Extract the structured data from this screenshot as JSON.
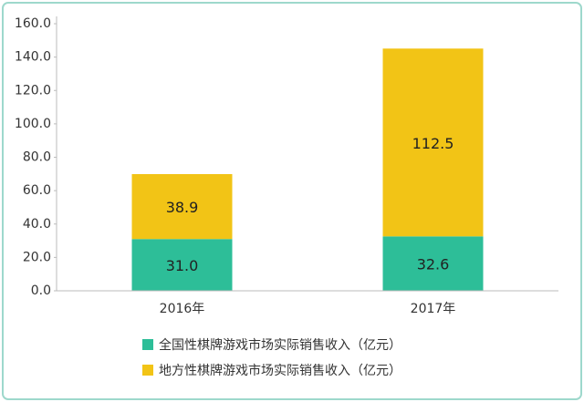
{
  "chart_data": {
    "type": "stacked-bar",
    "categories": [
      "2016年",
      "2017年"
    ],
    "series": [
      {
        "name": "全国性棋牌游戏市场实际销售收入（亿元）",
        "color": "#2dbe98",
        "values": [
          31.0,
          32.6
        ],
        "value_labels": [
          "31.0",
          "32.6"
        ]
      },
      {
        "name": "地方性棋牌游戏市场实际销售收入（亿元）",
        "color": "#f2c416",
        "values": [
          38.9,
          112.5
        ],
        "value_labels": [
          "38.9",
          "112.5"
        ]
      }
    ],
    "ylim": [
      0,
      160
    ],
    "yticks": [
      {
        "value": 0,
        "label": "0.0"
      },
      {
        "value": 20,
        "label": "20.0"
      },
      {
        "value": 40,
        "label": "40.0"
      },
      {
        "value": 60,
        "label": "60.0"
      },
      {
        "value": 80,
        "label": "80.0"
      },
      {
        "value": 100,
        "label": "100.0"
      },
      {
        "value": 120,
        "label": "120.0"
      },
      {
        "value": 140,
        "label": "140.0"
      },
      {
        "value": 160,
        "label": "160.0"
      }
    ],
    "grid": false,
    "legend": "bottom"
  }
}
